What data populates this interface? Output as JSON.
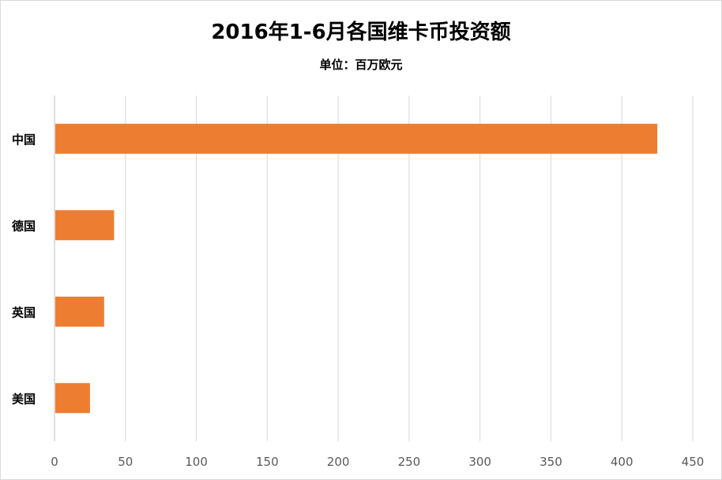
{
  "chart_data": {
    "type": "bar",
    "orientation": "horizontal",
    "title": "2016年1-6月各国维卡币投资额",
    "subtitle": "单位：百万欧元",
    "categories": [
      "中国",
      "德国",
      "英国",
      "美国"
    ],
    "values": [
      425,
      42,
      35,
      25
    ],
    "xlim": [
      0,
      450
    ],
    "xticks": [
      0,
      50,
      100,
      150,
      200,
      250,
      300,
      350,
      400,
      450
    ],
    "grid": true,
    "legend": "none",
    "bar_color": "#ED7D31",
    "grid_color": "#d9d9d9",
    "axis_color": "#bfbfbf"
  }
}
